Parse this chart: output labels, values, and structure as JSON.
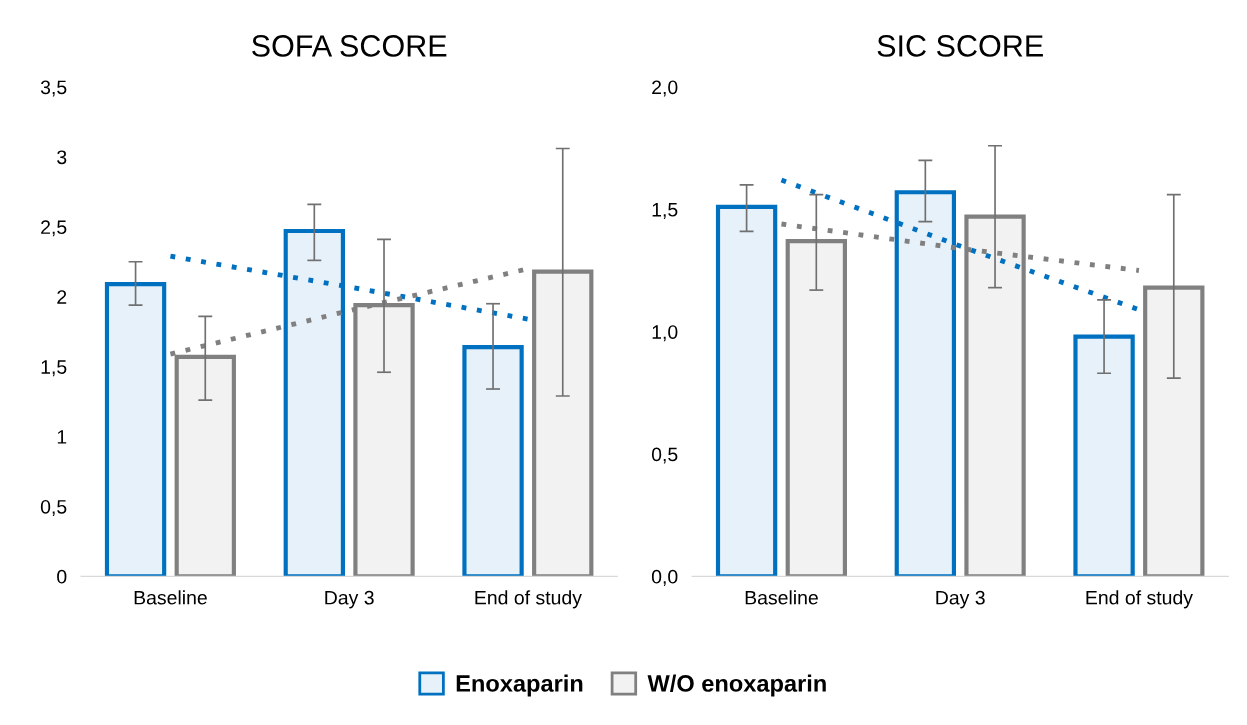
{
  "chart_data": [
    {
      "type": "bar",
      "title": "SOFA SCORE",
      "categories": [
        "Baseline",
        "Day 3",
        "End of study"
      ],
      "series": [
        {
          "name": "Enoxaparin",
          "color": "#0070c0",
          "values": [
            2.09,
            2.47,
            1.64
          ],
          "errors": [
            [
              1.94,
              2.25
            ],
            [
              2.26,
              2.66
            ],
            [
              1.34,
              1.95
            ]
          ]
        },
        {
          "name": "W/O enoxaparin",
          "color": "#808080",
          "values": [
            1.57,
            1.94,
            2.18
          ],
          "errors": [
            [
              1.26,
              1.86
            ],
            [
              1.46,
              2.41
            ],
            [
              1.29,
              3.06
            ]
          ]
        },
        {
          "type": "line",
          "color": "#0070c0",
          "line_style": "dotted",
          "values": [
            2.29,
            2.07,
            1.84
          ]
        },
        {
          "type": "line",
          "color": "#808080",
          "line_style": "dotted",
          "values": [
            1.59,
            1.9,
            2.2
          ]
        }
      ],
      "ylim": [
        0,
        3.5
      ],
      "yticks": [
        0,
        {
          "value": 0.5,
          "label": "0,5"
        },
        1,
        {
          "value": 1.5,
          "label": "1,5"
        },
        2,
        {
          "value": 2.5,
          "label": "2,5"
        },
        3,
        {
          "value": 3.5,
          "label": "3,5"
        }
      ],
      "legend": "bottom"
    },
    {
      "type": "bar",
      "title": "SIC SCORE",
      "categories": [
        "Baseline",
        "Day 3",
        "End of study"
      ],
      "series": [
        {
          "color": "#0070c0",
          "values": [
            1.51,
            1.57,
            0.98
          ],
          "errors": [
            [
              1.41,
              1.6
            ],
            [
              1.45,
              1.7
            ],
            [
              0.83,
              1.13
            ]
          ]
        },
        {
          "color": "#808080",
          "values": [
            1.37,
            1.47,
            1.18
          ],
          "errors": [
            [
              1.17,
              1.56
            ],
            [
              1.18,
              1.76
            ],
            [
              0.81,
              1.56
            ]
          ]
        },
        {
          "type": "line",
          "color": "#0070c0",
          "line_style": "dotted",
          "values": [
            1.62,
            1.35,
            1.09
          ]
        },
        {
          "type": "line",
          "color": "#808080",
          "line_style": "dotted",
          "values": [
            1.44,
            1.34,
            1.25
          ]
        }
      ],
      "ylim": [
        0,
        2.0
      ],
      "yticks": [
        {
          "value": 0,
          "label": "0,0"
        },
        {
          "value": 0.5,
          "label": "0,5"
        },
        {
          "value": 1.0,
          "label": "1,0"
        },
        {
          "value": 1.5,
          "label": "1,5"
        },
        {
          "value": 2.0,
          "label": "2,0"
        }
      ]
    }
  ]
}
